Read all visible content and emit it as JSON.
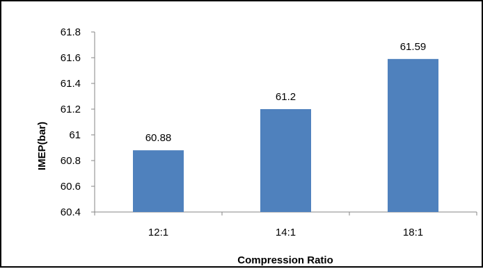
{
  "chart_data": {
    "type": "bar",
    "title": "",
    "xlabel": "Compression Ratio",
    "ylabel": "IMEP(bar)",
    "categories": [
      "12:1",
      "14:1",
      "18:1"
    ],
    "series": [
      {
        "values": [
          60.88,
          61.2,
          61.59
        ],
        "data_labels": [
          "60.88",
          "61.2",
          "61.59"
        ],
        "color": "#4f81bd"
      }
    ],
    "ylim": [
      60.4,
      61.8
    ],
    "yticks": [
      60.4,
      60.6,
      60.8,
      61,
      61.2,
      61.4,
      61.6,
      61.8
    ],
    "ytick_labels": [
      "60.4",
      "60.6",
      "60.8",
      "61",
      "61.2",
      "61.4",
      "61.6",
      "61.8"
    ],
    "grid": false,
    "legend": "none"
  }
}
